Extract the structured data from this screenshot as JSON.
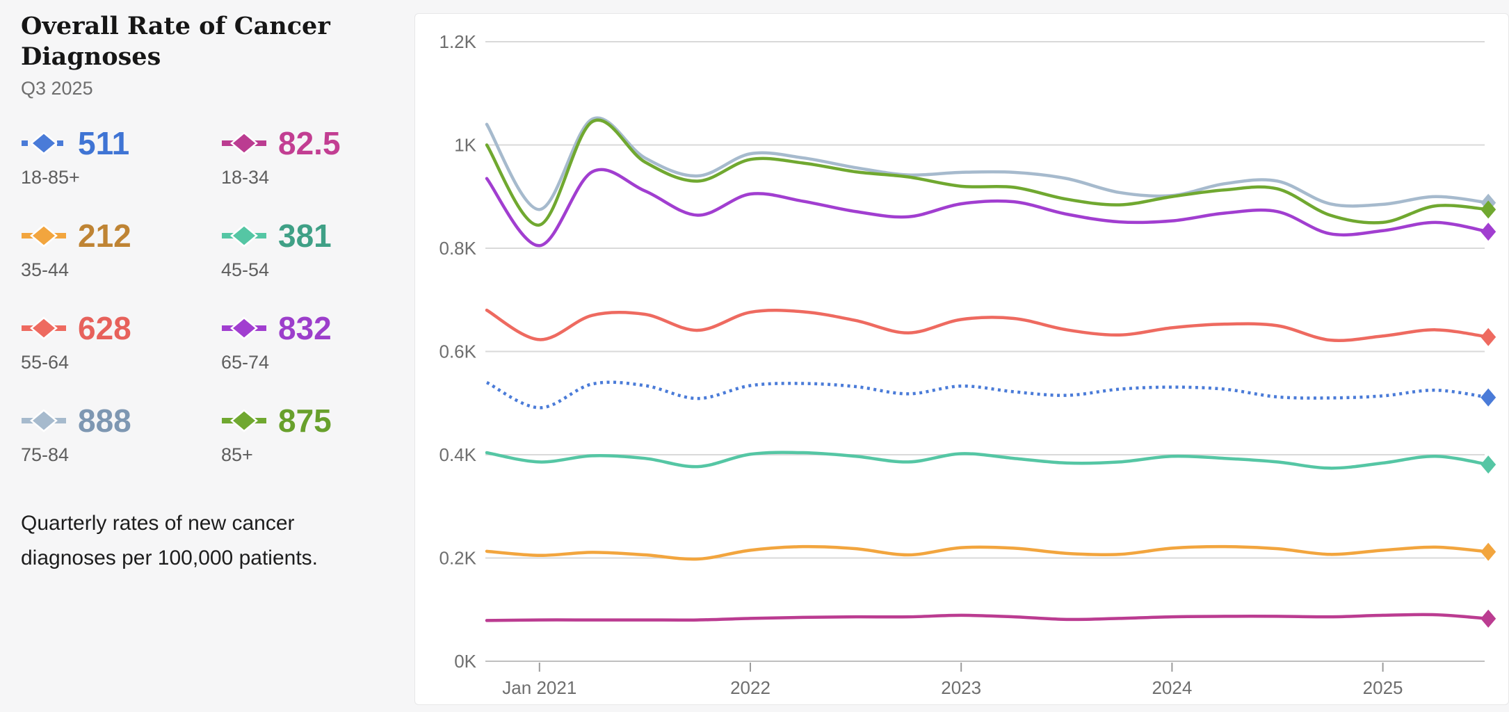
{
  "panel": {
    "title": "Overall Rate of Cancer Diagnoses",
    "subtitle": "Q3 2025",
    "description": "Quarterly rates of new cancer diagnoses per 100,000 patients."
  },
  "chart_data": {
    "type": "line",
    "title": "Overall Rate of Cancer Diagnoses",
    "period": "Q3 2025",
    "unit": "new cancer diagnoses per 100,000 patients, quarterly",
    "x_quarters": [
      "Q4 2020",
      "Q1 2021",
      "Q2 2021",
      "Q3 2021",
      "Q4 2021",
      "Q1 2022",
      "Q2 2022",
      "Q3 2022",
      "Q4 2022",
      "Q1 2023",
      "Q2 2023",
      "Q3 2023",
      "Q4 2023",
      "Q1 2024",
      "Q2 2024",
      "Q3 2024",
      "Q4 2024",
      "Q1 2025",
      "Q2 2025",
      "Q3 2025"
    ],
    "x_tick_labels": [
      "Jan 2021",
      "2022",
      "2023",
      "2024",
      "2025"
    ],
    "x_tick_indices": [
      1,
      5,
      9,
      13,
      17
    ],
    "y_tick_labels": [
      "0K",
      "0.2K",
      "0.4K",
      "0.6K",
      "0.8K",
      "1K",
      "1.2K"
    ],
    "y_tick_values": [
      0,
      200,
      400,
      600,
      800,
      1000,
      1200
    ],
    "ylim": [
      0,
      1200
    ],
    "grid": "horizontal",
    "legend_position": "left-panel",
    "marker": "diamond-at-last-point",
    "series": [
      {
        "name": "18-85+",
        "current_label": "511",
        "color": "#4a7bd8",
        "text_color": "#3f74d4",
        "dotted": true,
        "values": [
          540,
          491,
          537,
          534,
          509,
          534,
          538,
          532,
          518,
          533,
          522,
          515,
          527,
          531,
          527,
          512,
          510,
          514,
          525,
          511
        ]
      },
      {
        "name": "18-34",
        "current_label": "82.5",
        "color": "#bb3c91",
        "text_color": "#c23e92",
        "dotted": false,
        "values": [
          79,
          80,
          80,
          80,
          80,
          83,
          85,
          86,
          86,
          89,
          86,
          81,
          83,
          86,
          87,
          87,
          86,
          89,
          90,
          82.5
        ]
      },
      {
        "name": "35-44",
        "current_label": "212",
        "color": "#f2a53e",
        "text_color": "#bf8434",
        "dotted": false,
        "values": [
          213,
          205,
          211,
          206,
          198,
          215,
          222,
          218,
          206,
          220,
          219,
          209,
          207,
          219,
          222,
          218,
          207,
          215,
          221,
          212
        ]
      },
      {
        "name": "45-54",
        "current_label": "381",
        "color": "#55c6a4",
        "text_color": "#3fa086",
        "dotted": false,
        "values": [
          404,
          386,
          398,
          393,
          377,
          401,
          404,
          397,
          386,
          402,
          393,
          384,
          386,
          397,
          393,
          386,
          374,
          384,
          397,
          381
        ]
      },
      {
        "name": "55-64",
        "current_label": "628",
        "color": "#ee6a60",
        "text_color": "#e7615b",
        "dotted": false,
        "values": [
          680,
          623,
          670,
          672,
          641,
          676,
          677,
          660,
          636,
          662,
          664,
          642,
          632,
          646,
          653,
          650,
          622,
          630,
          642,
          628
        ]
      },
      {
        "name": "65-74",
        "current_label": "832",
        "color": "#a13ed0",
        "text_color": "#9c3ecb",
        "dotted": false,
        "values": [
          935,
          805,
          948,
          911,
          864,
          905,
          891,
          871,
          861,
          886,
          890,
          866,
          851,
          853,
          868,
          871,
          828,
          834,
          850,
          832
        ]
      },
      {
        "name": "75-84",
        "current_label": "888",
        "color": "#a6bacd",
        "text_color": "#7e97b2",
        "dotted": false,
        "values": [
          1040,
          875,
          1050,
          975,
          940,
          983,
          975,
          956,
          942,
          947,
          947,
          935,
          908,
          902,
          925,
          930,
          886,
          885,
          900,
          888
        ]
      },
      {
        "name": "85+",
        "current_label": "875",
        "color": "#70a830",
        "text_color": "#68a02c",
        "dotted": false,
        "values": [
          1000,
          845,
          1045,
          967,
          930,
          972,
          965,
          948,
          938,
          920,
          918,
          895,
          884,
          900,
          913,
          915,
          864,
          850,
          882,
          875
        ]
      }
    ],
    "draw_order": [
      6,
      7,
      5,
      4,
      0,
      3,
      2,
      1
    ],
    "colors": {
      "background": "#f6f6f7",
      "card": "#ffffff",
      "gridline": "#d9d9d9",
      "axisline": "#bfbfbf",
      "tick": "#9b9b9b",
      "axis_text": "#6e6e6e"
    }
  }
}
